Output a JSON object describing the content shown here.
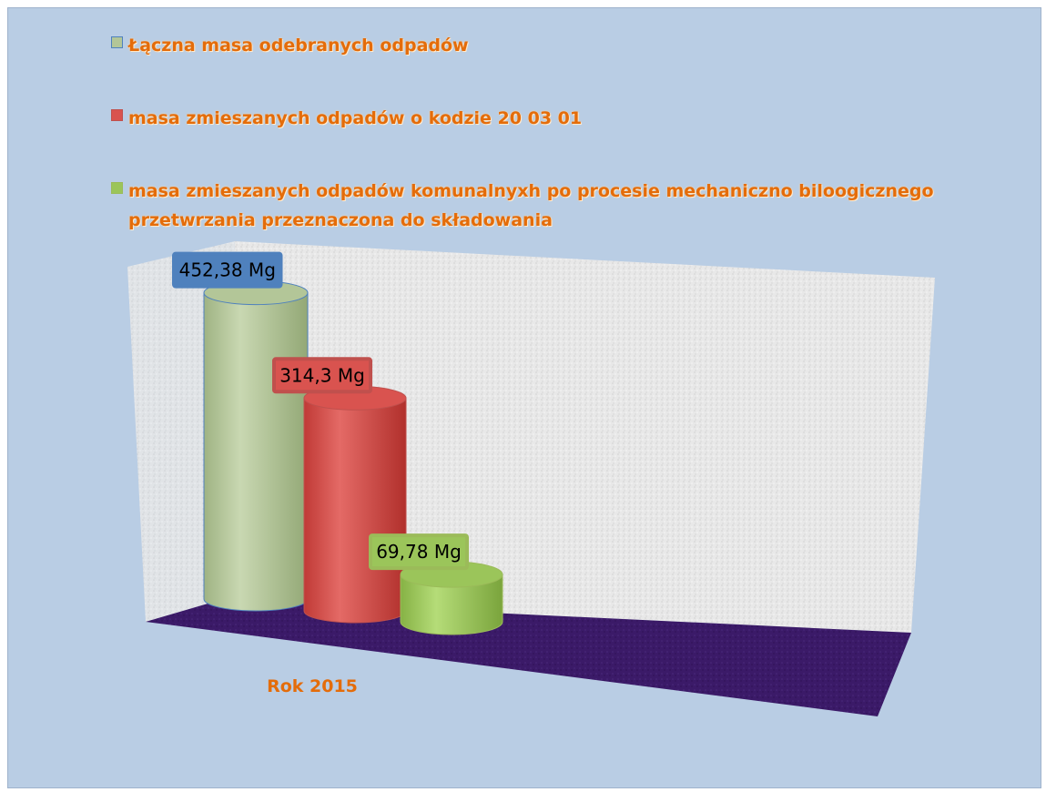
{
  "chart_data": {
    "type": "bar",
    "categories": [
      "Rok 2015"
    ],
    "series": [
      {
        "name": "Łączna masa odebranych odpadów",
        "values": [
          452.38
        ],
        "label": "452,38 Mg",
        "color": "#b3c698",
        "label_color": "#4f81bd"
      },
      {
        "name": "masa zmieszanych odpadów o kodzie 20 03 01",
        "values": [
          314.3
        ],
        "label": "314,3 Mg",
        "color": "#d9534f",
        "label_color": "#c0504d"
      },
      {
        "name": "masa zmieszanych odpadów komunalnyxh po procesie mechaniczno biloogicznego przetwrzania przeznaczona do składowania",
        "values": [
          69.78
        ],
        "label": "69,78 Mg",
        "color": "#9bc55a",
        "label_color": "#9bbb59"
      }
    ],
    "legend": {
      "placement": "top",
      "swatches": [
        "#4f81bd",
        "#c0504d",
        "#9bbb59"
      ]
    },
    "ylim": [
      0,
      460
    ],
    "floor_color": "#3b1a68",
    "wall_color": "#e6e6e6"
  }
}
